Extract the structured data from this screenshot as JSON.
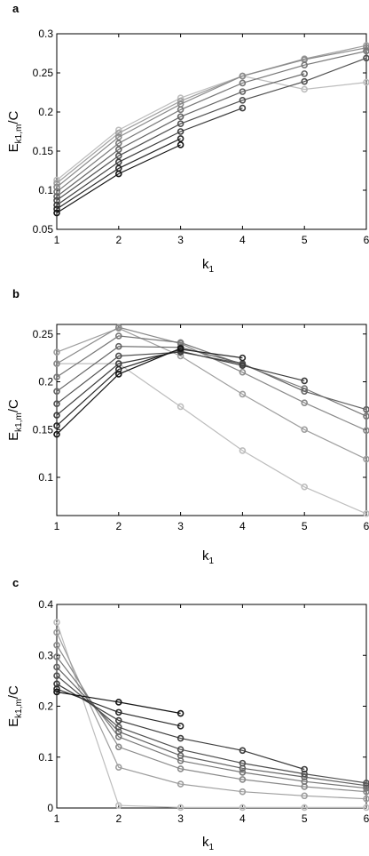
{
  "figure": {
    "panels": [
      "a",
      "b",
      "c"
    ]
  },
  "chart_data": [
    {
      "panel": "a",
      "type": "line",
      "xlabel_main": "k",
      "xlabel_sub": "1",
      "ylabel_main": "E",
      "ylabel_sub": "k1,m",
      "ylabel_tail": "/C",
      "xlim": [
        1,
        6
      ],
      "ylim": [
        0.05,
        0.3
      ],
      "xticks": [
        1,
        2,
        3,
        4,
        5,
        6
      ],
      "xtick_labels": [
        "1",
        "2",
        "3",
        "4",
        "5",
        "6"
      ],
      "yticks": [
        0.05,
        0.1,
        0.15,
        0.2,
        0.25,
        0.3
      ],
      "ytick_labels": [
        "0.05",
        "0.1",
        "0.15",
        "0.2",
        "0.25",
        "0.3"
      ],
      "series": [
        {
          "color": "#bdbdbd",
          "x": [
            1,
            2,
            3,
            4,
            5,
            6
          ],
          "values": [
            0.113,
            0.177,
            0.218,
            0.246,
            0.229,
            0.238
          ]
        },
        {
          "color": "#9e9e9e",
          "x": [
            1,
            2,
            3,
            4,
            5,
            6
          ],
          "values": [
            0.109,
            0.173,
            0.214,
            0.246,
            0.268,
            0.285
          ]
        },
        {
          "color": "#8a8a8a",
          "x": [
            1,
            2,
            3,
            4,
            5,
            6
          ],
          "values": [
            0.104,
            0.168,
            0.21,
            0.246,
            0.267,
            0.282
          ]
        },
        {
          "color": "#777777",
          "x": [
            1,
            2,
            3,
            4,
            5,
            6
          ],
          "values": [
            0.098,
            0.16,
            0.203,
            0.237,
            0.26,
            0.278
          ]
        },
        {
          "color": "#646464",
          "x": [
            1,
            2,
            3,
            4,
            5
          ],
          "values": [
            0.092,
            0.152,
            0.194,
            0.226,
            0.249
          ]
        },
        {
          "color": "#505050",
          "x": [
            1,
            2,
            3,
            4,
            5,
            6
          ],
          "values": [
            0.087,
            0.144,
            0.185,
            0.215,
            0.239,
            0.269
          ]
        },
        {
          "color": "#3c3c3c",
          "x": [
            1,
            2,
            3,
            4
          ],
          "values": [
            0.081,
            0.136,
            0.175,
            0.205
          ]
        },
        {
          "color": "#282828",
          "x": [
            1,
            2,
            3
          ],
          "values": [
            0.076,
            0.128,
            0.166
          ]
        },
        {
          "color": "#141414",
          "x": [
            1,
            2,
            3
          ],
          "values": [
            0.071,
            0.121,
            0.158
          ]
        }
      ]
    },
    {
      "panel": "b",
      "type": "line",
      "xlabel_main": "k",
      "xlabel_sub": "1",
      "ylabel_main": "E",
      "ylabel_sub": "k1,m",
      "ylabel_tail": "/C",
      "xlim": [
        1,
        6
      ],
      "ylim": [
        0.06,
        0.26
      ],
      "xticks": [
        1,
        2,
        3,
        4,
        5,
        6
      ],
      "xtick_labels": [
        "1",
        "2",
        "3",
        "4",
        "5",
        "6"
      ],
      "yticks": [
        0.1,
        0.15,
        0.2,
        0.25
      ],
      "ytick_labels": [
        "0.1",
        "0.15",
        "0.2",
        "0.25"
      ],
      "series": [
        {
          "color": "#bdbdbd",
          "x": [
            1,
            2,
            3,
            4,
            5,
            6
          ],
          "values": [
            0.219,
            0.219,
            0.174,
            0.128,
            0.09,
            0.062
          ]
        },
        {
          "color": "#9e9e9e",
          "x": [
            1,
            2,
            3,
            4,
            5,
            6
          ],
          "values": [
            0.231,
            0.256,
            0.227,
            0.187,
            0.15,
            0.119
          ]
        },
        {
          "color": "#8a8a8a",
          "x": [
            1,
            2,
            3,
            4,
            5,
            6
          ],
          "values": [
            0.219,
            0.257,
            0.24,
            0.21,
            0.178,
            0.149
          ]
        },
        {
          "color": "#777777",
          "x": [
            1,
            2,
            3,
            4,
            5,
            6
          ],
          "values": [
            0.205,
            0.248,
            0.241,
            0.218,
            0.193,
            0.164
          ]
        },
        {
          "color": "#646464",
          "x": [
            1,
            2,
            3,
            4,
            5,
            6
          ],
          "values": [
            0.19,
            0.237,
            0.236,
            0.219,
            0.19,
            0.171
          ]
        },
        {
          "color": "#505050",
          "x": [
            1,
            2,
            3,
            4
          ],
          "values": [
            0.177,
            0.227,
            0.231,
            0.219
          ]
        },
        {
          "color": "#3c3c3c",
          "x": [
            1,
            2,
            3,
            4,
            5
          ],
          "values": [
            0.165,
            0.219,
            0.232,
            0.217,
            0.201
          ]
        },
        {
          "color": "#282828",
          "x": [
            1,
            2,
            3,
            4
          ],
          "values": [
            0.154,
            0.213,
            0.234,
            0.225
          ]
        },
        {
          "color": "#141414",
          "x": [
            1,
            2,
            3
          ],
          "values": [
            0.145,
            0.208,
            0.235
          ]
        }
      ]
    },
    {
      "panel": "c",
      "type": "line",
      "xlabel_main": "k",
      "xlabel_sub": "1",
      "ylabel_main": "E",
      "ylabel_sub": "k1,m",
      "ylabel_tail": "/C",
      "xlim": [
        1,
        6
      ],
      "ylim": [
        0,
        0.4
      ],
      "xticks": [
        1,
        2,
        3,
        4,
        5,
        6
      ],
      "xtick_labels": [
        "1",
        "2",
        "3",
        "4",
        "5",
        "6"
      ],
      "yticks": [
        0,
        0.1,
        0.2,
        0.3,
        0.4
      ],
      "ytick_labels": [
        "0",
        "0.1",
        "0.2",
        "0.3",
        "0.4"
      ],
      "series": [
        {
          "color": "#bdbdbd",
          "x": [
            1,
            2,
            3,
            4,
            5,
            6
          ],
          "values": [
            0.365,
            0.005,
            0.001,
            0.001,
            0.001,
            0.001
          ]
        },
        {
          "color": "#9e9e9e",
          "x": [
            1,
            2,
            3,
            4,
            5,
            6
          ],
          "values": [
            0.345,
            0.08,
            0.047,
            0.032,
            0.024,
            0.018
          ]
        },
        {
          "color": "#8a8a8a",
          "x": [
            1,
            2,
            3,
            4,
            5,
            6
          ],
          "values": [
            0.32,
            0.12,
            0.077,
            0.056,
            0.042,
            0.032
          ]
        },
        {
          "color": "#777777",
          "x": [
            1,
            2,
            3,
            4,
            5,
            6
          ],
          "values": [
            0.297,
            0.14,
            0.093,
            0.07,
            0.052,
            0.039
          ]
        },
        {
          "color": "#646464",
          "x": [
            1,
            2,
            3,
            4,
            5,
            6
          ],
          "values": [
            0.277,
            0.15,
            0.103,
            0.078,
            0.061,
            0.044
          ]
        },
        {
          "color": "#505050",
          "x": [
            1,
            2,
            3,
            4,
            5,
            6
          ],
          "values": [
            0.26,
            0.159,
            0.115,
            0.088,
            0.067,
            0.049
          ]
        },
        {
          "color": "#3c3c3c",
          "x": [
            1,
            2,
            3,
            4,
            5
          ],
          "values": [
            0.244,
            0.172,
            0.137,
            0.113,
            0.076
          ]
        },
        {
          "color": "#282828",
          "x": [
            1,
            2,
            3
          ],
          "values": [
            0.234,
            0.188,
            0.161
          ]
        },
        {
          "color": "#141414",
          "x": [
            1,
            2,
            3
          ],
          "values": [
            0.228,
            0.208,
            0.186
          ]
        }
      ]
    }
  ]
}
